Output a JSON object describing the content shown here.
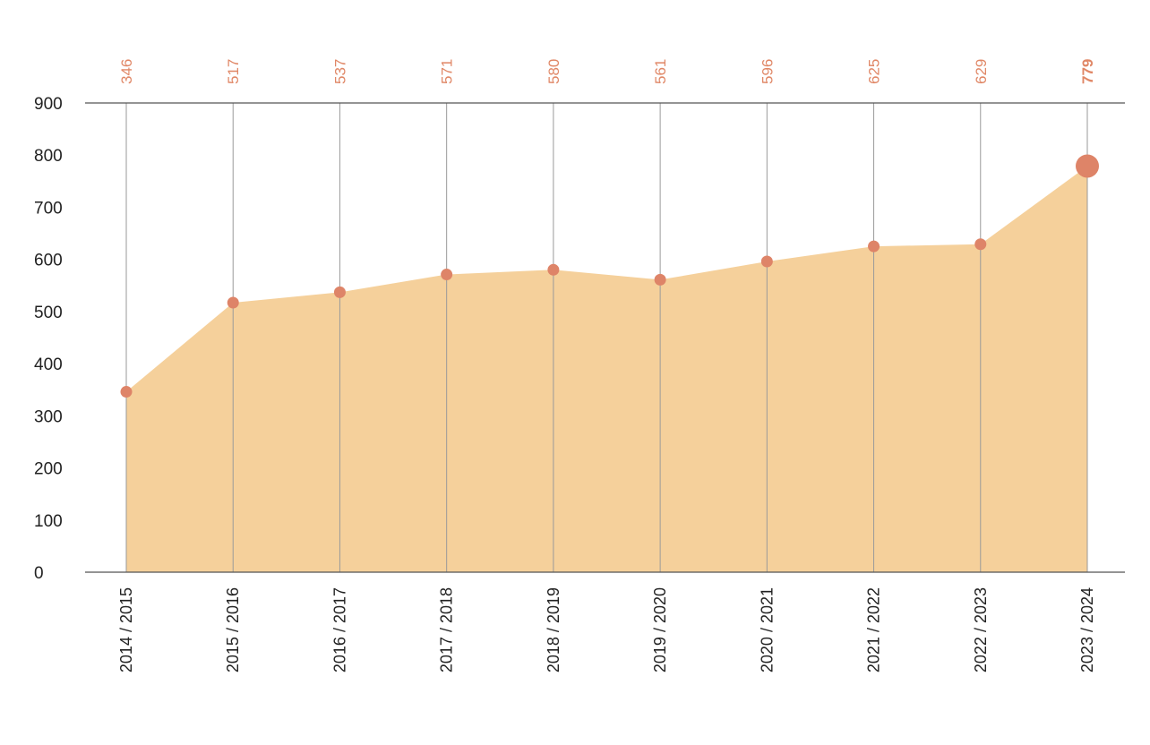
{
  "chart_data": {
    "type": "area",
    "title": "",
    "xlabel": "",
    "ylabel": "",
    "categories": [
      "2014 / 2015",
      "2015 / 2016",
      "2016 / 2017",
      "2017 / 2018",
      "2018 / 2019",
      "2019 / 2020",
      "2020 / 2021",
      "2021 / 2022",
      "2022 / 2023",
      "2023 / 2024"
    ],
    "values": [
      346,
      517,
      537,
      571,
      580,
      561,
      596,
      625,
      629,
      779
    ],
    "value_labels": [
      "346",
      "517",
      "537",
      "571",
      "580",
      "561",
      "596",
      "625",
      "629",
      "779"
    ],
    "highlight_index": 9,
    "ylim": [
      0,
      900
    ],
    "yticks": [
      0,
      100,
      200,
      300,
      400,
      500,
      600,
      700,
      800,
      900
    ],
    "ytick_labels": [
      "0",
      "100",
      "200",
      "300",
      "400",
      "500",
      "600",
      "700",
      "800",
      "900"
    ],
    "grid": false,
    "legend": "none",
    "colors": {
      "area_fill": "#f5d09b",
      "marker": "#de8468",
      "value_label": "#e08766",
      "axis_line": "#555555",
      "drop_line": "#9a9a9a"
    }
  }
}
